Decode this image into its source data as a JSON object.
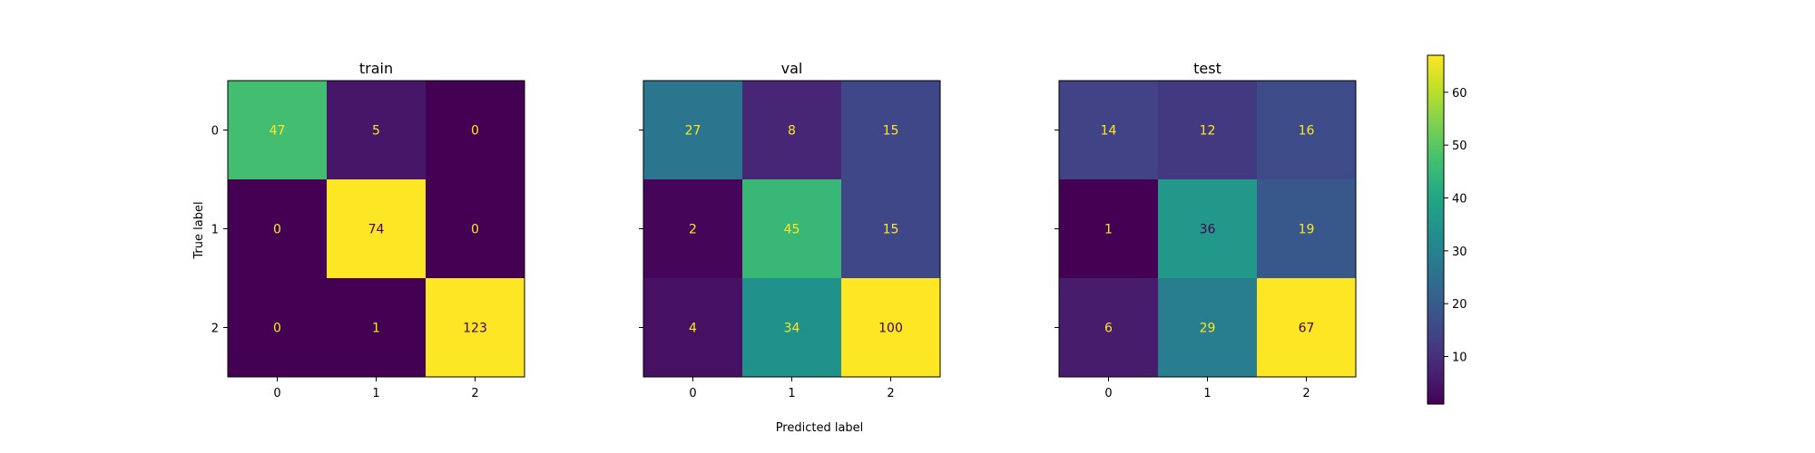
{
  "chart_data": {
    "type": "heatmap",
    "colormap": "viridis",
    "xlabel": "Predicted label",
    "ylabel": "True label",
    "classes": [
      "0",
      "1",
      "2"
    ],
    "panels": [
      {
        "title": "train",
        "matrix": [
          [
            47,
            5,
            0
          ],
          [
            0,
            74,
            0
          ],
          [
            0,
            1,
            123
          ]
        ]
      },
      {
        "title": "val",
        "matrix": [
          [
            27,
            8,
            15
          ],
          [
            2,
            45,
            15
          ],
          [
            4,
            34,
            100
          ]
        ]
      },
      {
        "title": "test",
        "matrix": [
          [
            14,
            12,
            16
          ],
          [
            1,
            36,
            19
          ],
          [
            6,
            29,
            67
          ]
        ]
      }
    ],
    "colorbar": {
      "vmin": 1,
      "vmax": 67,
      "ticks": [
        10,
        20,
        30,
        40,
        50,
        60
      ]
    },
    "colors": {
      "text_light": "#fde725",
      "text_dark": "#440154"
    }
  }
}
